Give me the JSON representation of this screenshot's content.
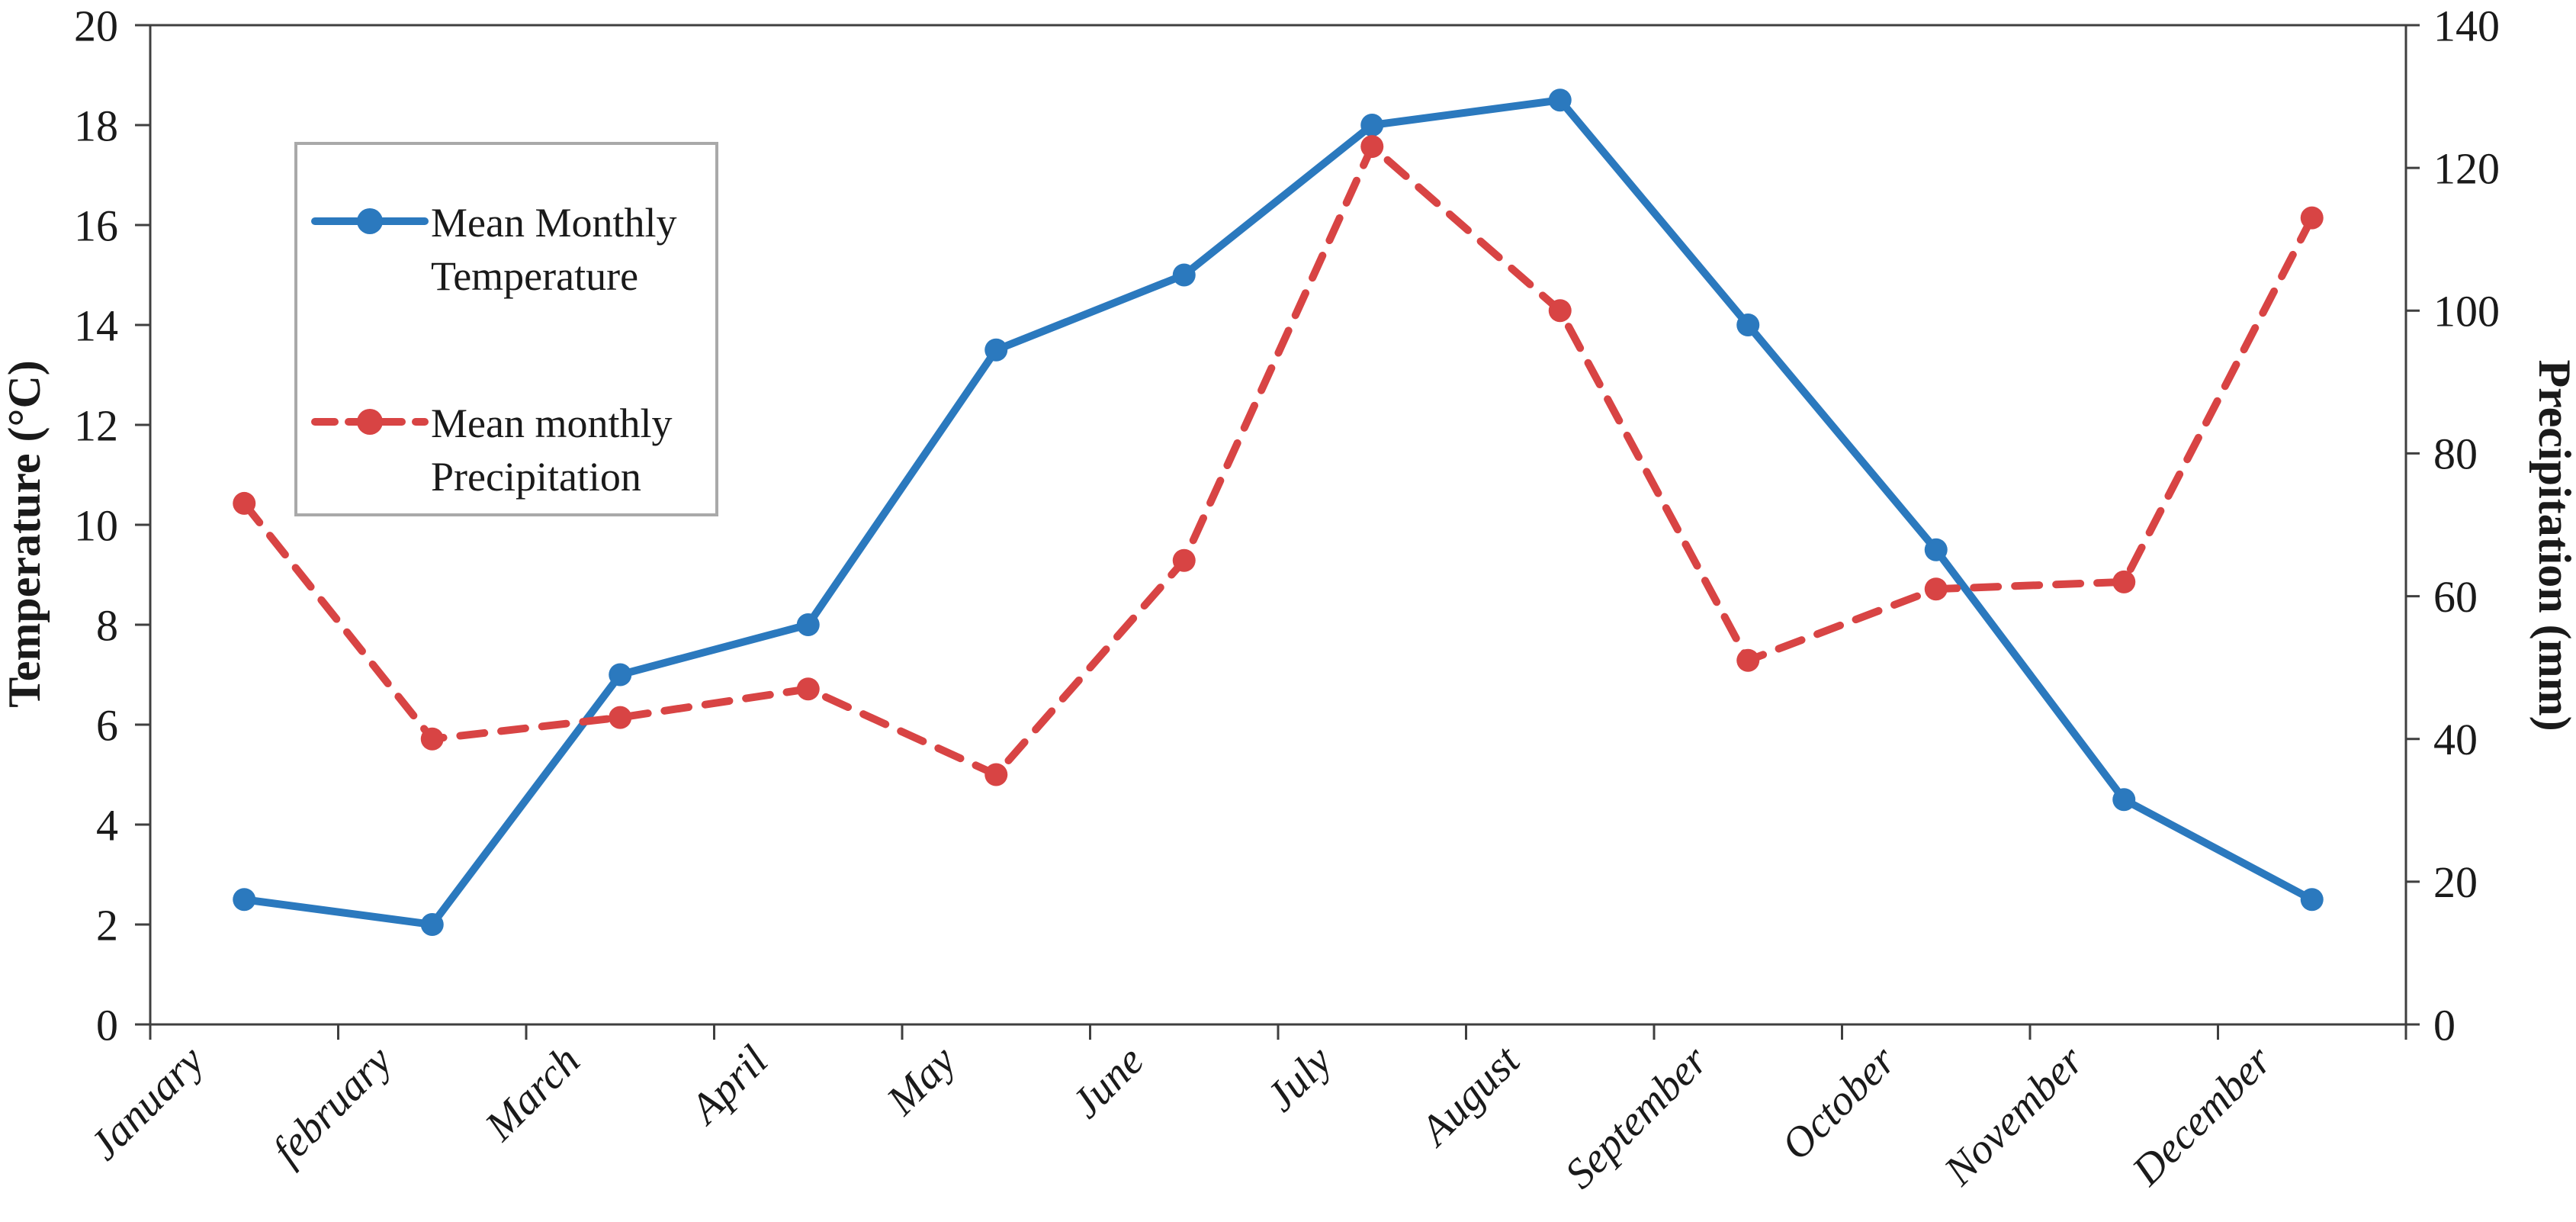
{
  "colors": {
    "temperature_series": "#2B79BE",
    "precipitation_series": "#D84444",
    "axis_line": "#3F3F3F",
    "legend_border": "#A9A9A9",
    "text": "#1A1A1A",
    "background": "#FFFFFF"
  },
  "chart_data": {
    "type": "line",
    "categories": [
      "January",
      "february",
      "March",
      "April",
      "May",
      "June",
      "July",
      "August",
      "September",
      "October",
      "November",
      "December"
    ],
    "series": [
      {
        "name": "Mean Monthly Temperature",
        "legend_lines": [
          "Mean Monthly",
          "Temperature"
        ],
        "axis": "left",
        "style": "solid",
        "color": "#2B79BE",
        "values": [
          2.5,
          2.0,
          7.0,
          8.0,
          13.5,
          15.0,
          18.0,
          18.5,
          14.0,
          9.5,
          4.5,
          2.5
        ]
      },
      {
        "name": "Mean monthly Precipitation",
        "legend_lines": [
          "Mean monthly",
          "Precipitation"
        ],
        "axis": "right",
        "style": "dashed",
        "color": "#D84444",
        "values": [
          73,
          40,
          43,
          47,
          35,
          65,
          123,
          100,
          51,
          61,
          62,
          113
        ]
      }
    ],
    "left_axis": {
      "label": "Temperature (°C)",
      "min": 0,
      "max": 20,
      "step": 2,
      "tick_labels": [
        "0",
        "2",
        "4",
        "6",
        "8",
        "10",
        "12",
        "14",
        "16",
        "18",
        "20"
      ]
    },
    "right_axis": {
      "label": "Precipitation (mm)",
      "min": 0,
      "max": 140,
      "step": 20,
      "tick_labels": [
        "0",
        "20",
        "40",
        "60",
        "80",
        "100",
        "120",
        "140"
      ]
    },
    "title": "",
    "grid": false,
    "legend_position": "upper-left-inside",
    "marker": "circle",
    "x_label_rotation_deg": -45
  }
}
